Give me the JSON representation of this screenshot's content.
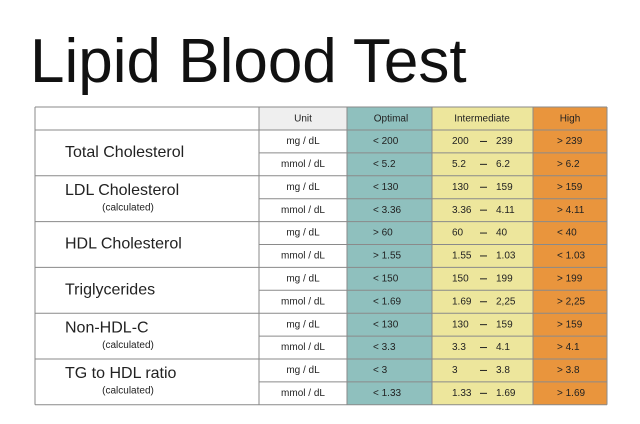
{
  "header": {
    "title": "Lipid Blood Test"
  },
  "table": {
    "columns": [
      "Unit",
      "Optimal",
      "Intermediate",
      "High"
    ],
    "rows": [
      {
        "name": "Total Cholesterol",
        "units": [
          {
            "unit": "mg / dL",
            "optimal": "< 200",
            "intermediate": {
              "low": "200",
              "high": "239"
            },
            "high": "> 239"
          },
          {
            "unit": "mmol / dL",
            "optimal": "< 5.2",
            "intermediate": {
              "low": "5.2",
              "high": "6.2"
            },
            "high": "> 6.2"
          }
        ]
      },
      {
        "name": "LDL Cholesterol",
        "note": "(calculated)",
        "units": [
          {
            "unit": "mg / dL",
            "optimal": "< 130",
            "intermediate": {
              "low": "130",
              "high": "159"
            },
            "high": "> 159"
          },
          {
            "unit": "mmol / dL",
            "optimal": "< 3.36",
            "intermediate": {
              "low": "3.36",
              "high": "4.11"
            },
            "high": "> 4.11"
          }
        ]
      },
      {
        "name": "HDL Cholesterol",
        "units": [
          {
            "unit": "mg / dL",
            "optimal": "> 60",
            "intermediate": {
              "low": "60",
              "high": "40"
            },
            "high": "< 40"
          },
          {
            "unit": "mmol / dL",
            "optimal": "> 1.55",
            "intermediate": {
              "low": "1.55",
              "high": "1.03"
            },
            "high": "< 1.03"
          }
        ]
      },
      {
        "name": "Triglycerides",
        "units": [
          {
            "unit": "mg / dL",
            "optimal": "< 150",
            "intermediate": {
              "low": "150",
              "high": "199"
            },
            "high": "> 199"
          },
          {
            "unit": "mmol / dL",
            "optimal": "< 1.69",
            "intermediate": {
              "low": "1.69",
              "high": "2,25"
            },
            "high": "> 2,25"
          }
        ]
      },
      {
        "name": "Non-HDL-C",
        "note": "(calculated)",
        "units": [
          {
            "unit": "mg / dL",
            "optimal": "< 130",
            "intermediate": {
              "low": "130",
              "high": "159"
            },
            "high": "> 159"
          },
          {
            "unit": "mmol / dL",
            "optimal": "< 3.3",
            "intermediate": {
              "low": "3.3",
              "high": "4.1"
            },
            "high": "> 4.1"
          }
        ]
      },
      {
        "name": "TG to HDL ratio",
        "note": "(calculated)",
        "units": [
          {
            "unit": "mg / dL",
            "optimal": "< 3",
            "intermediate": {
              "low": "3",
              "high": "3.8"
            },
            "high": "> 3.8"
          },
          {
            "unit": "mmol / dL",
            "optimal": "< 1.33",
            "intermediate": {
              "low": "1.33",
              "high": "1.69"
            },
            "high": "> 1.69"
          }
        ]
      }
    ]
  }
}
